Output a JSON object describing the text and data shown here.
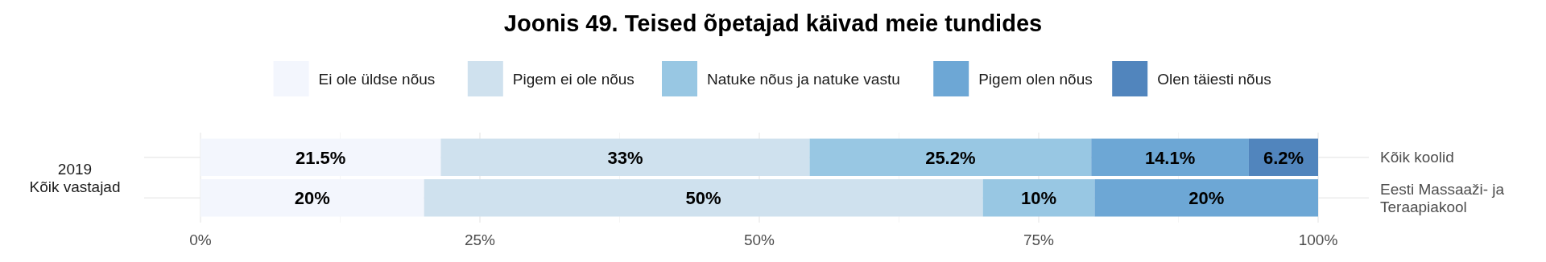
{
  "chart_data": {
    "type": "bar",
    "orientation": "horizontal",
    "stacked": true,
    "title": "Joonis 49. Teised õpetajad käivad meie tundides",
    "categories": [
      "Kõik koolid",
      "Eesti Massaaži- ja Teraapiakool"
    ],
    "series": [
      {
        "name": "Ei ole üldse nõus",
        "color": "#f3f6fd",
        "values": [
          21.5,
          20
        ],
        "value_labels": [
          "21.5%",
          "20%"
        ]
      },
      {
        "name": "Pigem ei ole nõus",
        "color": "#cfe1ee",
        "values": [
          33,
          50
        ],
        "value_labels": [
          "33%",
          "50%"
        ]
      },
      {
        "name": "Natuke nõus ja natuke vastu",
        "color": "#98c7e3",
        "values": [
          25.2,
          10
        ],
        "value_labels": [
          "25.2%",
          "10%"
        ]
      },
      {
        "name": "Pigem olen nõus",
        "color": "#6da7d5",
        "values": [
          14.1,
          20
        ],
        "value_labels": [
          "14.1%",
          "20%"
        ]
      },
      {
        "name": "Olen täiesti nõus",
        "color": "#5185bd",
        "values": [
          6.2,
          null
        ],
        "value_labels": [
          "6.2%",
          null
        ]
      }
    ],
    "xlim": [
      0,
      100
    ],
    "xticks": [
      {
        "value": 0,
        "label": "0%"
      },
      {
        "value": 25,
        "label": "25%"
      },
      {
        "value": 50,
        "label": "50%"
      },
      {
        "value": 75,
        "label": "75%"
      },
      {
        "value": 100,
        "label": "100%"
      }
    ],
    "annotations": [
      "2019\nKõik vastajad"
    ],
    "grid": true,
    "legend": "top"
  }
}
